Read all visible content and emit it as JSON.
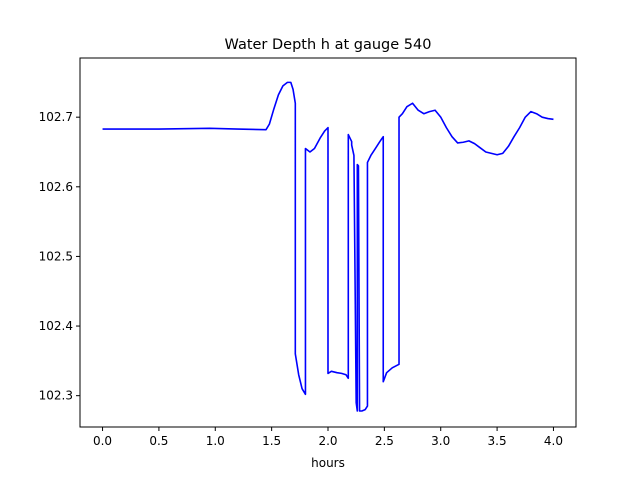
{
  "chart_data": {
    "type": "line",
    "title": "Water Depth h at gauge 540",
    "xlabel": "hours",
    "ylabel": "",
    "xlim": [
      -0.2,
      4.2
    ],
    "ylim": [
      102.255,
      102.785
    ],
    "grid": false,
    "legend": "none",
    "xticks": [
      0.0,
      0.5,
      1.0,
      1.5,
      2.0,
      2.5,
      3.0,
      3.5,
      4.0
    ],
    "xtick_labels": [
      "0.0",
      "0.5",
      "1.0",
      "1.5",
      "2.0",
      "2.5",
      "3.0",
      "3.5",
      "4.0"
    ],
    "yticks": [
      102.3,
      102.4,
      102.5,
      102.6,
      102.7
    ],
    "ytick_labels": [
      "102.3",
      "102.4",
      "102.5",
      "102.6",
      "102.7"
    ],
    "series": [
      {
        "color": "#0000ff",
        "x": [
          0.0,
          0.5,
          0.95,
          1.2,
          1.45,
          1.48,
          1.52,
          1.56,
          1.6,
          1.64,
          1.67,
          1.69,
          1.71,
          1.71,
          1.74,
          1.77,
          1.8,
          1.8,
          1.84,
          1.88,
          1.93,
          1.97,
          2.0,
          2.0,
          2.03,
          2.08,
          2.12,
          2.16,
          2.18,
          2.18,
          2.21,
          2.21,
          2.23,
          2.25,
          2.26,
          2.26,
          2.27,
          2.28,
          2.28,
          2.29,
          2.3,
          2.33,
          2.35,
          2.35,
          2.38,
          2.42,
          2.46,
          2.49,
          2.49,
          2.52,
          2.57,
          2.63,
          2.63,
          2.66,
          2.7,
          2.75,
          2.8,
          2.85,
          2.9,
          2.95,
          3.0,
          3.05,
          3.1,
          3.15,
          3.2,
          3.25,
          3.3,
          3.35,
          3.4,
          3.45,
          3.5,
          3.55,
          3.6,
          3.65,
          3.7,
          3.75,
          3.8,
          3.85,
          3.9,
          3.95,
          4.0
        ],
        "values": [
          102.683,
          102.683,
          102.684,
          102.683,
          102.682,
          102.69,
          102.712,
          102.732,
          102.745,
          102.75,
          102.75,
          102.74,
          102.72,
          102.36,
          102.33,
          102.31,
          102.302,
          102.655,
          102.65,
          102.655,
          102.67,
          102.68,
          102.685,
          102.332,
          102.335,
          102.333,
          102.332,
          102.33,
          102.325,
          102.675,
          102.665,
          102.66,
          102.645,
          102.29,
          102.278,
          102.632,
          102.63,
          102.278,
          102.278,
          102.278,
          102.278,
          102.28,
          102.285,
          102.635,
          102.645,
          102.655,
          102.665,
          102.672,
          102.32,
          102.333,
          102.34,
          102.345,
          102.7,
          102.705,
          102.715,
          102.72,
          102.71,
          102.705,
          102.708,
          102.71,
          102.7,
          102.685,
          102.672,
          102.663,
          102.664,
          102.666,
          102.662,
          102.656,
          102.65,
          102.648,
          102.646,
          102.648,
          102.658,
          102.672,
          102.685,
          102.7,
          102.708,
          102.705,
          102.7,
          102.698,
          102.697
        ]
      }
    ]
  }
}
